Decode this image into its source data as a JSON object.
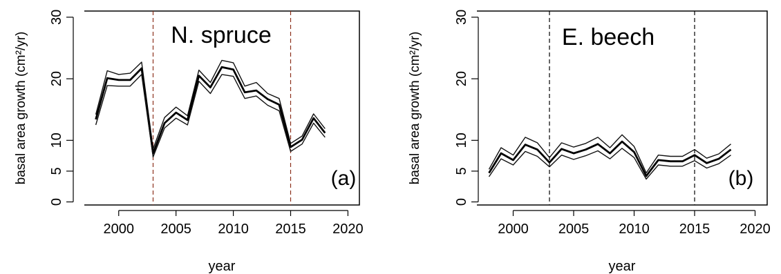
{
  "chart_data": [
    {
      "type": "line",
      "title": "N. spruce",
      "panel_label": "(a)",
      "xlabel": "year",
      "ylabel": "basal area growth (cm²/yr)",
      "xlim": [
        1997,
        2021
      ],
      "ylim": [
        -0.5,
        31
      ],
      "xticks": [
        2000,
        2005,
        2010,
        2015,
        2020
      ],
      "yticks": [
        0,
        5,
        10,
        20,
        30
      ],
      "reference_lines_x": [
        2003,
        2015
      ],
      "reference_line_color": "#8b2f1a",
      "grid": false,
      "x": [
        1998,
        1999,
        2000,
        2001,
        2002,
        2003,
        2004,
        2005,
        2006,
        2007,
        2008,
        2009,
        2010,
        2011,
        2012,
        2013,
        2014,
        2015,
        2016,
        2017,
        2018
      ],
      "series": [
        {
          "values": [
            14.2,
            21.3,
            20.7,
            20.9,
            22.7,
            8.6,
            13.7,
            15.4,
            14.0,
            21.4,
            19.4,
            23.0,
            22.6,
            18.8,
            19.4,
            17.6,
            16.8,
            9.5,
            10.7,
            14.3,
            11.9
          ]
        },
        {
          "values": [
            13.4,
            20.1,
            19.8,
            19.8,
            21.7,
            7.9,
            12.8,
            14.5,
            13.3,
            20.5,
            18.6,
            21.9,
            21.5,
            17.8,
            18.1,
            16.7,
            15.8,
            8.9,
            10.1,
            13.6,
            11.2
          ]
        },
        {
          "values": [
            12.5,
            18.9,
            18.8,
            18.8,
            20.7,
            7.3,
            12.0,
            13.6,
            12.5,
            19.6,
            17.6,
            20.7,
            20.4,
            16.8,
            17.2,
            15.7,
            14.8,
            8.2,
            9.4,
            12.8,
            10.5
          ]
        }
      ]
    },
    {
      "type": "line",
      "title": "E. beech",
      "panel_label": "(b)",
      "xlabel": "year",
      "ylabel": "basal area growth (cm²/yr)",
      "xlim": [
        1997,
        2021
      ],
      "ylim": [
        -0.5,
        31
      ],
      "xticks": [
        2000,
        2005,
        2010,
        2015,
        2020
      ],
      "yticks": [
        0,
        5,
        10,
        20,
        30
      ],
      "reference_lines_x": [
        2003,
        2015
      ],
      "reference_line_color": "#000000",
      "grid": false,
      "x": [
        1998,
        1999,
        2000,
        2001,
        2002,
        2003,
        2004,
        2005,
        2006,
        2007,
        2008,
        2009,
        2010,
        2011,
        2012,
        2013,
        2014,
        2015,
        2016,
        2017,
        2018
      ],
      "series": [
        {
          "values": [
            5.3,
            8.8,
            7.6,
            10.5,
            9.6,
            7.2,
            9.6,
            8.9,
            9.5,
            10.5,
            8.8,
            10.9,
            9.0,
            4.7,
            7.6,
            7.4,
            7.4,
            8.5,
            7.1,
            7.8,
            9.4
          ]
        },
        {
          "values": [
            4.7,
            7.9,
            6.8,
            9.3,
            8.5,
            6.4,
            8.6,
            7.9,
            8.5,
            9.4,
            7.9,
            9.8,
            8.1,
            4.2,
            6.8,
            6.6,
            6.6,
            7.6,
            6.3,
            7.0,
            8.5
          ]
        },
        {
          "values": [
            4.1,
            7.0,
            6.0,
            8.2,
            7.4,
            5.7,
            7.6,
            6.9,
            7.5,
            8.3,
            7.0,
            8.7,
            7.2,
            3.7,
            6.0,
            5.8,
            5.8,
            6.7,
            5.5,
            6.2,
            7.6
          ]
        }
      ]
    }
  ]
}
